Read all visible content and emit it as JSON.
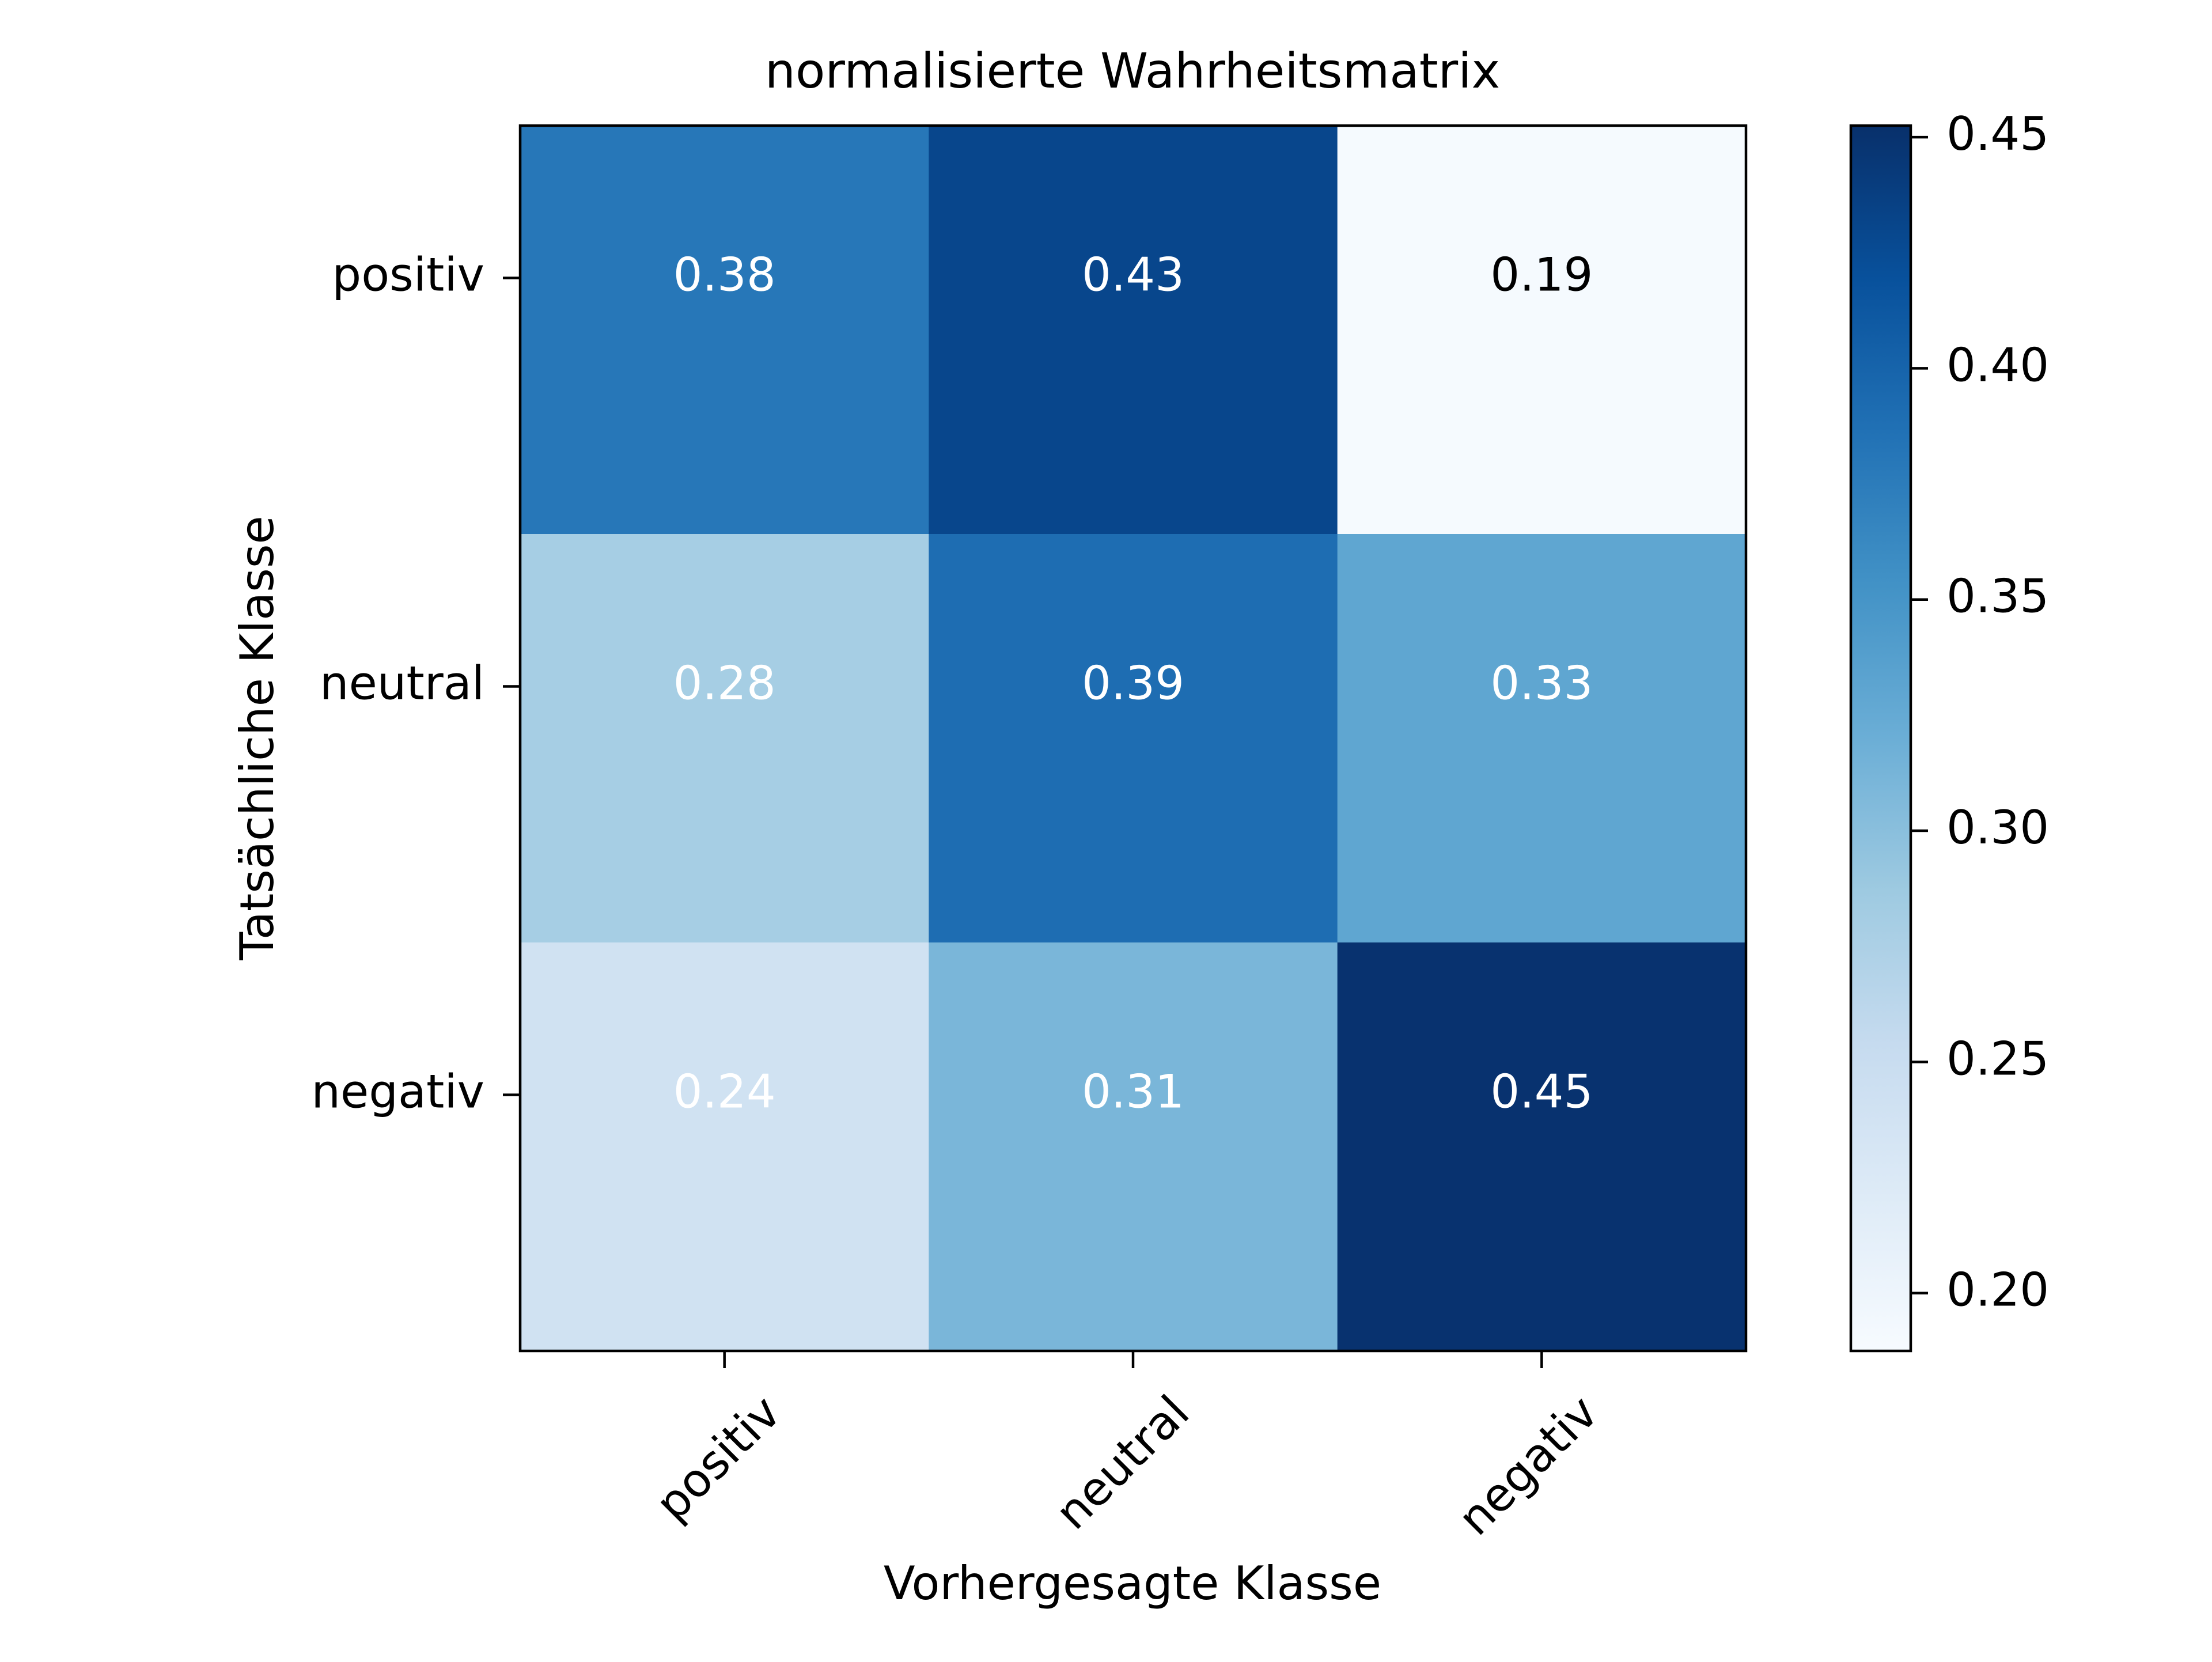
{
  "chart_data": {
    "type": "heatmap",
    "title": "normalisierte Wahrheitsmatrix",
    "xlabel": "Vorhergesagte Klasse",
    "ylabel": "Tatsächliche Klasse",
    "x_categories": [
      "positiv",
      "neutral",
      "negativ"
    ],
    "y_categories": [
      "positiv",
      "neutral",
      "negativ"
    ],
    "values": [
      [
        0.38,
        0.43,
        0.19
      ],
      [
        0.28,
        0.39,
        0.33
      ],
      [
        0.24,
        0.31,
        0.45
      ]
    ],
    "cell_labels": [
      [
        "0.38",
        "0.43",
        "0.19"
      ],
      [
        "0.28",
        "0.39",
        "0.33"
      ],
      [
        "0.24",
        "0.31",
        "0.45"
      ]
    ],
    "colormap": "Blues",
    "colorbar": {
      "range": [
        0.1875,
        0.4525
      ],
      "ticks": [
        0.2,
        0.25,
        0.3,
        0.35,
        0.4,
        0.45
      ],
      "tick_labels": [
        "0.20",
        "0.25",
        "0.30",
        "0.35",
        "0.40",
        "0.45"
      ]
    },
    "grid": false,
    "legend": "none"
  }
}
